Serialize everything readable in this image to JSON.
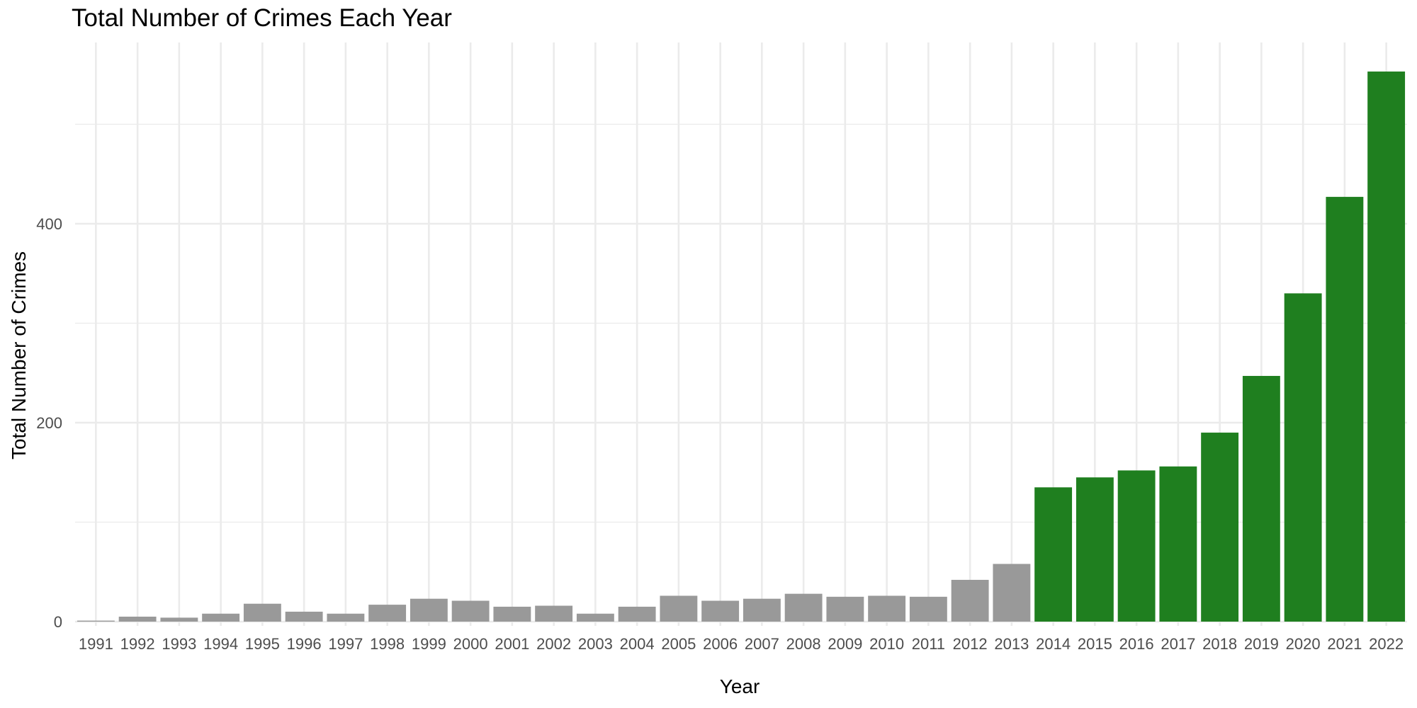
{
  "chart_data": {
    "type": "bar",
    "title": "Total Number of Crimes Each Year",
    "xlabel": "Year",
    "ylabel": "Total Number of Crimes",
    "ylim": [
      0,
      555
    ],
    "yticks": [
      0,
      200,
      400
    ],
    "grid": true,
    "legend": "none",
    "categories": [
      "1991",
      "1992",
      "1993",
      "1994",
      "1995",
      "1996",
      "1997",
      "1998",
      "1999",
      "2000",
      "2001",
      "2002",
      "2003",
      "2004",
      "2005",
      "2006",
      "2007",
      "2008",
      "2009",
      "2010",
      "2011",
      "2012",
      "2013",
      "2014",
      "2015",
      "2016",
      "2017",
      "2018",
      "2019",
      "2020",
      "2021",
      "2022"
    ],
    "values": [
      1,
      5,
      4,
      8,
      18,
      10,
      8,
      17,
      23,
      21,
      15,
      16,
      8,
      15,
      26,
      21,
      23,
      28,
      25,
      26,
      25,
      42,
      58,
      135,
      145,
      152,
      156,
      190,
      247,
      330,
      427,
      553
    ],
    "colors": {
      "before_2014": "#999999",
      "from_2014": "#1f7f1f",
      "grid": "#ebebeb"
    }
  }
}
